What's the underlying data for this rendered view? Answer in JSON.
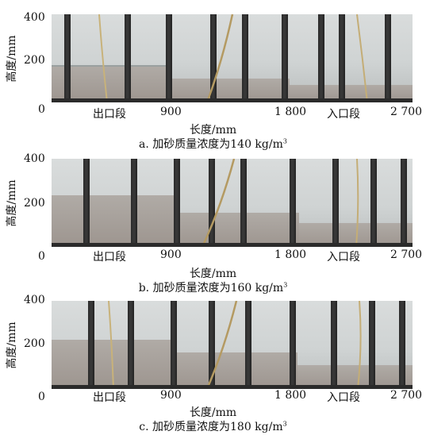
{
  "y_axis_label": "高度/mm",
  "x_axis_label": "长度/mm",
  "y_ticks": [
    "400",
    "200",
    "0"
  ],
  "x_ticks": [
    "出口段",
    "900",
    "1 800",
    "入口段",
    "2 700"
  ],
  "panels": [
    {
      "caption_prefix": "a. 加砂质量浓度为140 kg/m",
      "caption_sup": "3"
    },
    {
      "caption_prefix": "b. 加砂质量浓度为160 kg/m",
      "caption_sup": "3"
    },
    {
      "caption_prefix": "c. 加砂质量浓度为180 kg/m",
      "caption_sup": "3"
    }
  ]
}
